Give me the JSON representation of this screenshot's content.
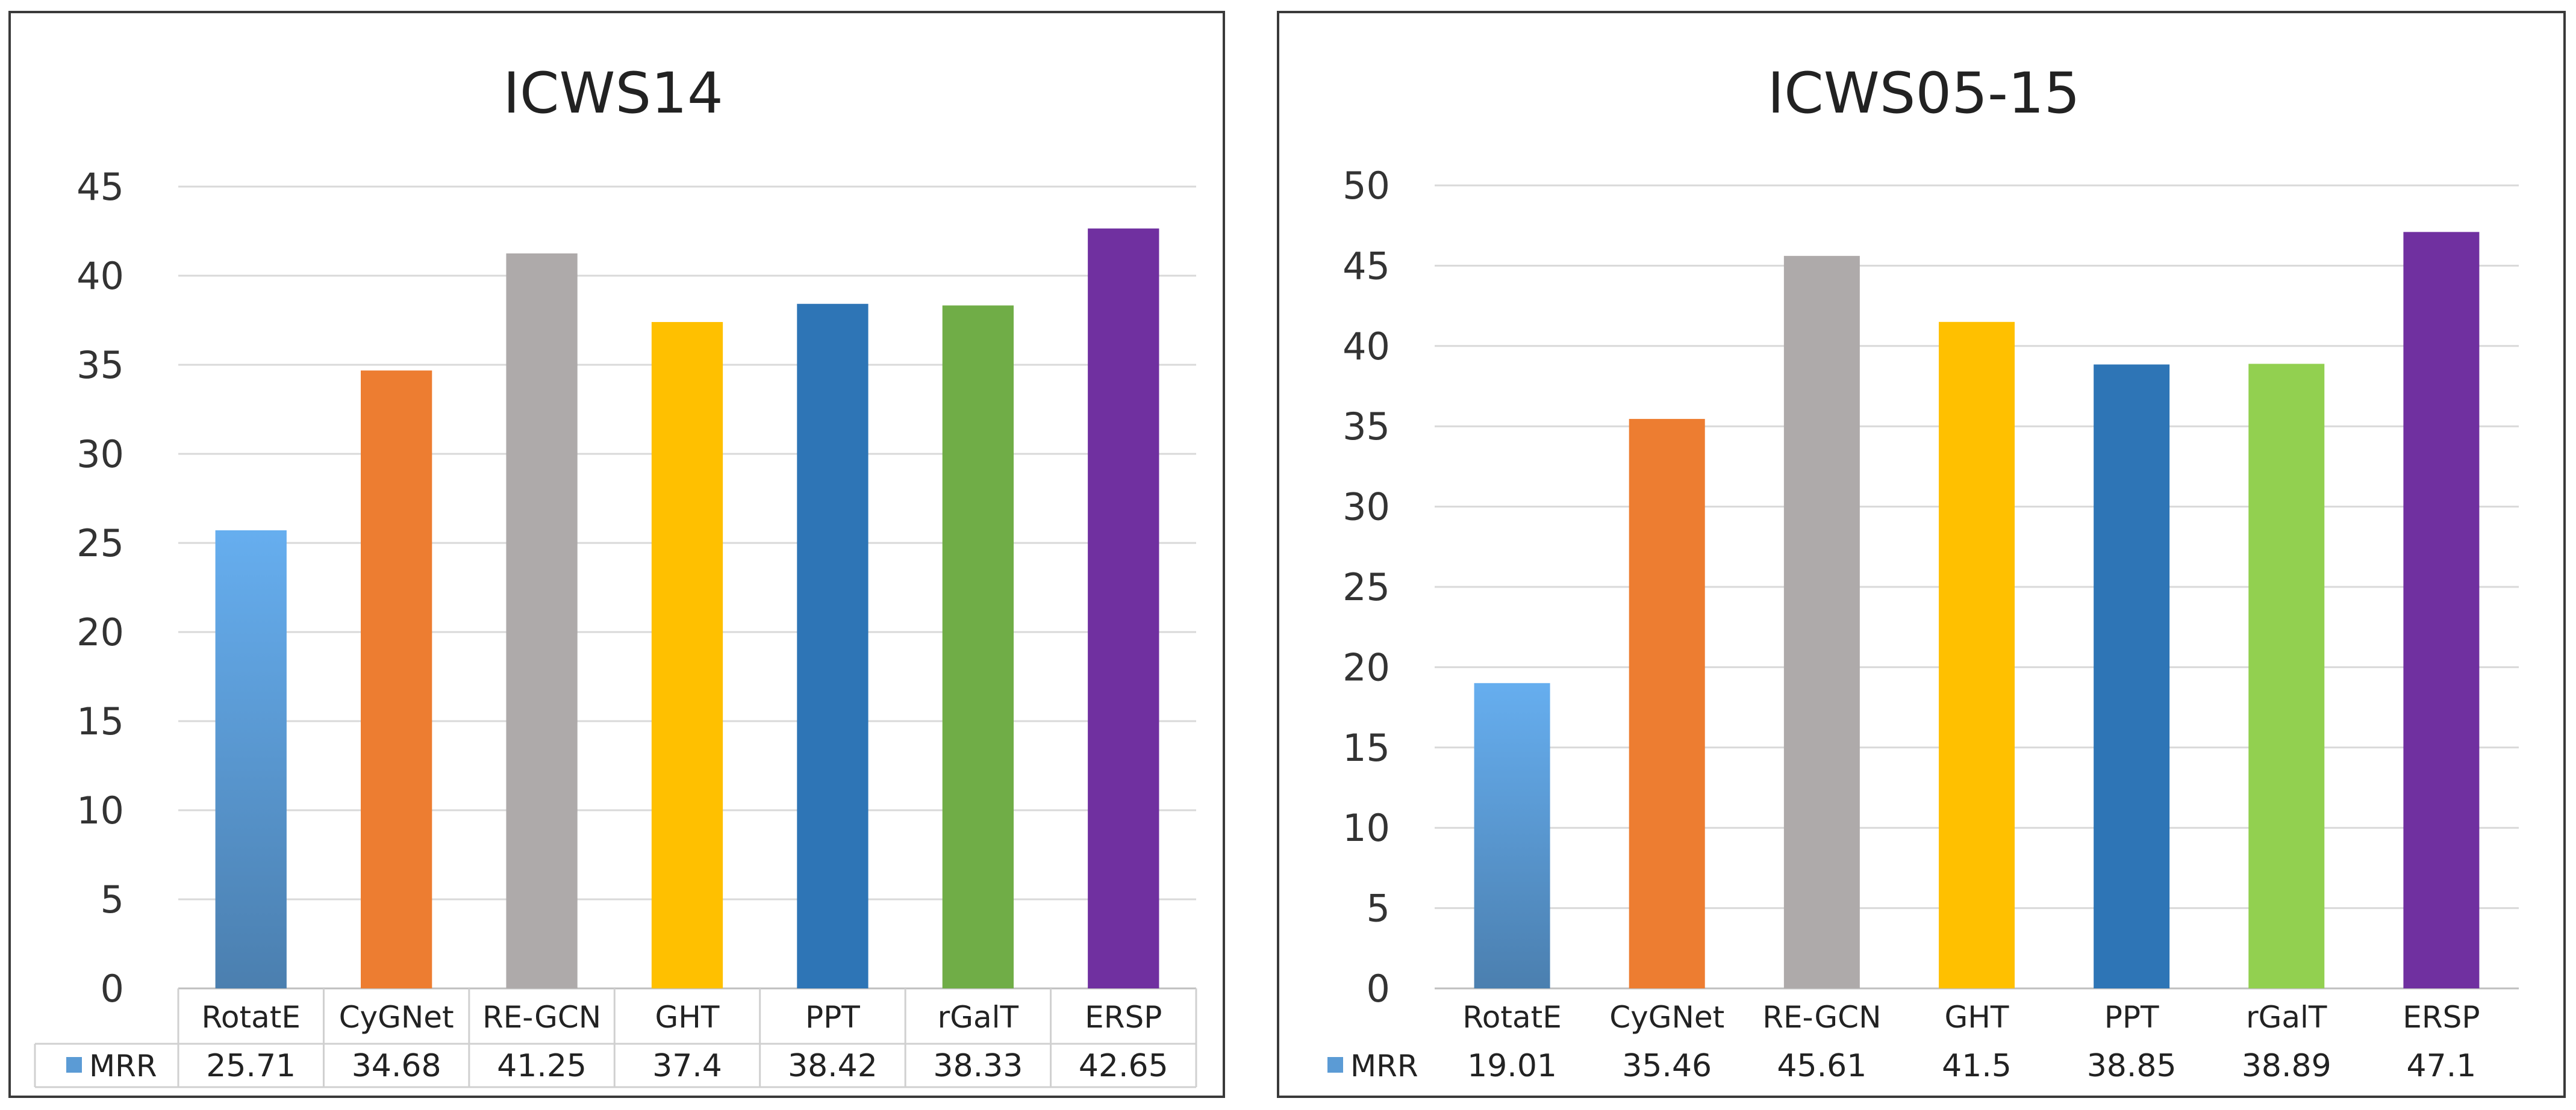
{
  "chart_data": [
    {
      "type": "bar",
      "title": "ICWS14",
      "categories": [
        "RotatE",
        "CyGNet",
        "RE-GCN",
        "GHT",
        "PPT",
        "rGalT",
        "ERSP"
      ],
      "series": [
        {
          "name": "MRR",
          "values": [
            25.71,
            34.68,
            41.25,
            37.4,
            38.42,
            38.33,
            42.65
          ]
        }
      ],
      "value_labels": [
        "25.71",
        "34.68",
        "41.25",
        "37.4",
        "38.42",
        "38.33",
        "42.65"
      ],
      "ylim": [
        0,
        45
      ],
      "yticks": [
        0,
        5,
        10,
        15,
        20,
        25,
        30,
        35,
        40,
        45
      ],
      "colors": [
        "#5b9bd5",
        "#ed7d31",
        "#aeaaaa",
        "#ffc000",
        "#2e75b6",
        "#70ad47",
        "#7030a0"
      ],
      "legend_color": "#5b9bd5",
      "data_table": true,
      "table_borders": true,
      "grid": true
    },
    {
      "type": "bar",
      "title": "ICWS05-15",
      "categories": [
        "RotatE",
        "CyGNet",
        "RE-GCN",
        "GHT",
        "PPT",
        "rGalT",
        "ERSP"
      ],
      "series": [
        {
          "name": "MRR",
          "values": [
            19.01,
            35.46,
            45.61,
            41.5,
            38.85,
            38.89,
            47.1
          ]
        }
      ],
      "value_labels": [
        "19.01",
        "35.46",
        "45.61",
        "41.5",
        "38.85",
        "38.89",
        "47.1"
      ],
      "ylim": [
        0,
        50
      ],
      "yticks": [
        0,
        5,
        10,
        15,
        20,
        25,
        30,
        35,
        40,
        45,
        50
      ],
      "colors": [
        "#5b9bd5",
        "#ed7d31",
        "#aeaaaa",
        "#ffc000",
        "#2e75b6",
        "#92d050",
        "#7030a0"
      ],
      "legend_color": "#5b9bd5",
      "data_table": true,
      "table_borders": false,
      "grid": true
    }
  ]
}
